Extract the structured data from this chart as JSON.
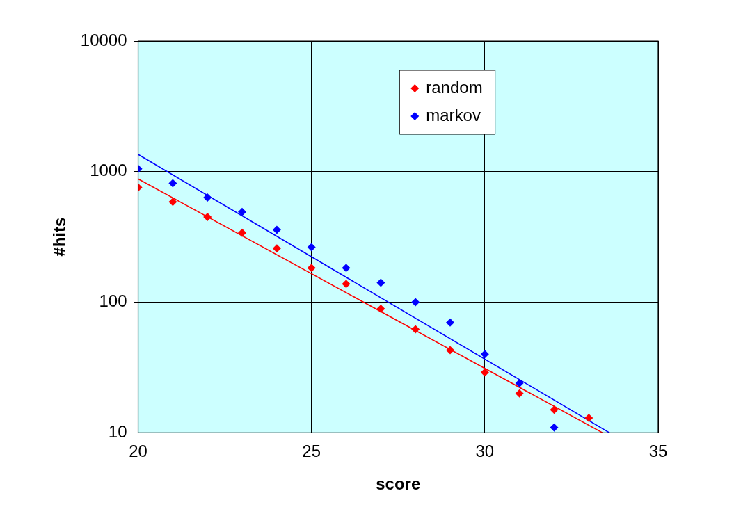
{
  "chart_data": {
    "type": "scatter",
    "xlabel": "score",
    "ylabel": "#hits",
    "xlim": [
      20,
      35
    ],
    "xticks": [
      20,
      25,
      30,
      35
    ],
    "ylim": [
      10,
      10000
    ],
    "yticks": [
      10,
      100,
      1000,
      10000
    ],
    "log": "y",
    "grid": true,
    "legend": "top right",
    "marker": "diamond",
    "series": [
      {
        "name": "random",
        "color": "#ff0000",
        "x": [
          20,
          21,
          22,
          23,
          24,
          25,
          26,
          27,
          28,
          29,
          30,
          31,
          32,
          33
        ],
        "values": [
          757,
          587,
          450,
          340,
          258,
          183,
          138,
          89,
          62,
          43,
          29,
          20,
          15,
          13
        ]
      },
      {
        "name": "markov",
        "color": "#0000ff",
        "x": [
          20,
          21,
          22,
          23,
          24,
          25,
          26,
          27,
          28,
          29,
          30,
          31,
          32
        ],
        "values": [
          1050,
          816,
          634,
          492,
          358,
          264,
          183,
          141,
          100,
          70,
          40,
          24,
          11
        ]
      },
      {
        "type": "line",
        "color": "#ff0000",
        "marker": "none",
        "x": [
          20,
          33.4
        ],
        "values": [
          880,
          10
        ]
      },
      {
        "type": "line",
        "color": "#0000ff",
        "marker": "none",
        "x": [
          20,
          33.6
        ],
        "values": [
          1355,
          10
        ]
      }
    ]
  }
}
